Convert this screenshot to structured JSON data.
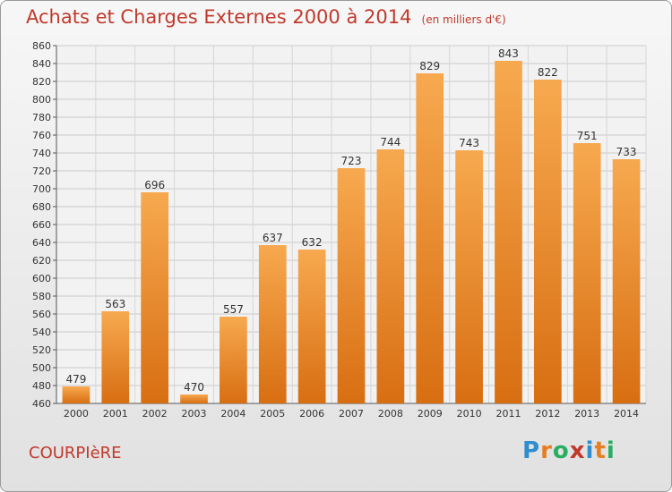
{
  "title": "Achats et Charges Externes 2000 à 2014",
  "unit_note": "(en milliers d'€)",
  "commune": "COURPIèRE",
  "brand": {
    "letters": [
      "P",
      "r",
      "o",
      "x",
      "i",
      "t",
      "i"
    ],
    "colors": [
      "#2e8ece",
      "#e67e22",
      "#27ae60",
      "#c0392b",
      "#2e8ece",
      "#e67e22",
      "#27ae60"
    ]
  },
  "colors": {
    "bar_top": "#f7a94f",
    "bar_bottom": "#d86e12",
    "title": "#c0392b"
  },
  "chart_data": {
    "type": "bar",
    "title": "Achats et Charges Externes 2000 à 2014",
    "categories": [
      "2000",
      "2001",
      "2002",
      "2003",
      "2004",
      "2005",
      "2006",
      "2007",
      "2008",
      "2009",
      "2010",
      "2011",
      "2012",
      "2013",
      "2014"
    ],
    "values": [
      479,
      563,
      696,
      470,
      557,
      637,
      632,
      723,
      744,
      829,
      743,
      843,
      822,
      751,
      733
    ],
    "ylim": [
      460,
      860
    ],
    "ytick_step": 20,
    "grid": true
  }
}
